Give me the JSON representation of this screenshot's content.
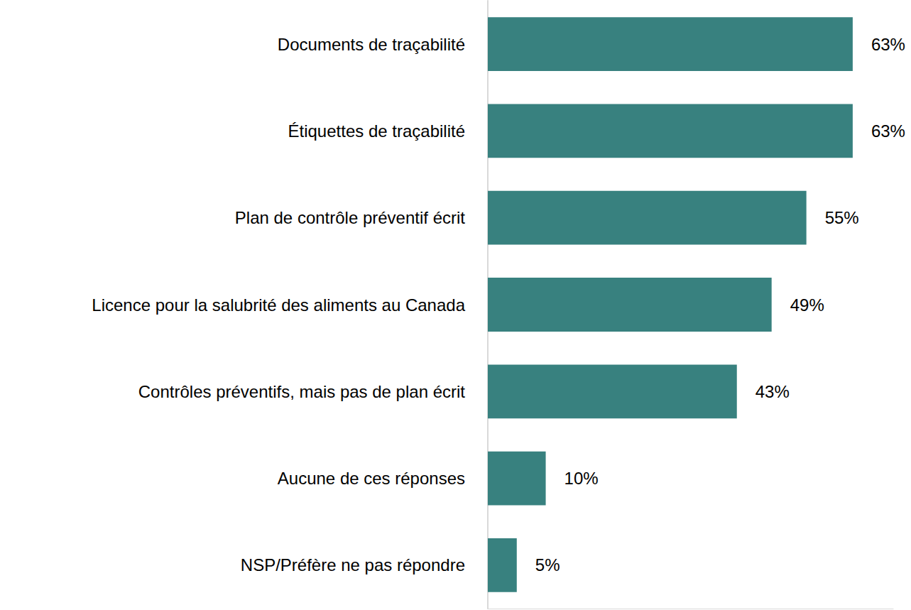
{
  "chart_data": {
    "type": "bar",
    "orientation": "horizontal",
    "categories": [
      "Documents de traçabilité",
      "Étiquettes de traçabilité",
      "Plan de contrôle préventif écrit",
      "Licence pour la salubrité des aliments au Canada",
      "Contrôles préventifs, mais pas de plan écrit",
      "Aucune de ces réponses",
      "NSP/Préfère ne pas répondre"
    ],
    "values": [
      63,
      63,
      55,
      49,
      43,
      10,
      5
    ],
    "value_labels": [
      "63%",
      "63%",
      "55%",
      "49%",
      "43%",
      "10%",
      "5%"
    ],
    "color": "#38817f",
    "xlim": [
      0,
      70
    ],
    "grid": false,
    "data_labels": true,
    "tick_labels": "y"
  }
}
